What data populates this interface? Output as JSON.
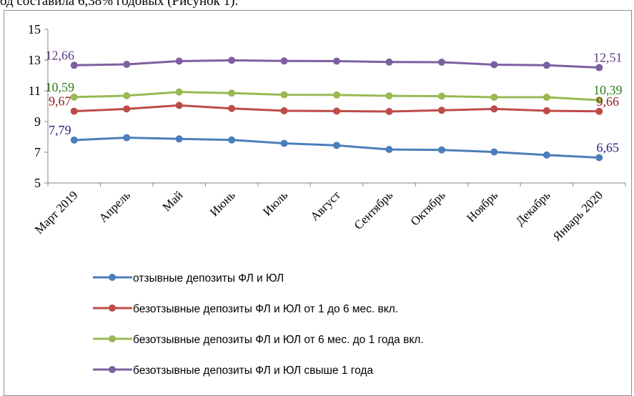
{
  "page": {
    "top_text": "од составила 6,38% годовых (Рисунок 1)."
  },
  "chart_data": {
    "type": "line",
    "categories": [
      "Март 2019",
      "Апрель",
      "Май",
      "Июнь",
      "Июль",
      "Август",
      "Сентябрь",
      "Октябрь",
      "Ноябрь",
      "Декабрь",
      "Январь 2020"
    ],
    "yticks": [
      "5",
      "7",
      "9",
      "11",
      "13",
      "15"
    ],
    "ylim": [
      5,
      15
    ],
    "grid": false,
    "legend_position": "bottom",
    "series": [
      {
        "name": "отзывные депозиты ФЛ и ЮЛ",
        "color": "#4A7EBB",
        "label_color": "#1F1F7A",
        "values": [
          7.79,
          7.95,
          7.87,
          7.8,
          7.58,
          7.45,
          7.18,
          7.15,
          7.02,
          6.82,
          6.65
        ],
        "first_label": "7,79",
        "last_label": "6,65"
      },
      {
        "name": "безотзывные депозиты ФЛ и ЮЛ от 1 до 6 мес. вкл.",
        "color": "#BE4B48",
        "label_color": "#8B1A1A",
        "values": [
          9.67,
          9.82,
          10.05,
          9.85,
          9.7,
          9.68,
          9.65,
          9.73,
          9.82,
          9.7,
          9.66
        ],
        "first_label": "9,67",
        "last_label": "9,66"
      },
      {
        "name": "безотзывные депозиты ФЛ и ЮЛ от 6 мес. до 1 года вкл.",
        "color": "#98B954",
        "label_color": "#2F7A1A",
        "values": [
          10.59,
          10.68,
          10.92,
          10.85,
          10.74,
          10.73,
          10.67,
          10.65,
          10.58,
          10.58,
          10.39
        ],
        "first_label": "10,59",
        "last_label": "10,39"
      },
      {
        "name": "безотзывные депозиты ФЛ и ЮЛ свыше 1 года",
        "color": "#7D60A0",
        "label_color": "#5B3A86",
        "values": [
          12.66,
          12.72,
          12.93,
          12.98,
          12.94,
          12.93,
          12.87,
          12.86,
          12.7,
          12.66,
          12.51
        ],
        "first_label": "12,66",
        "last_label": "12,51"
      }
    ]
  }
}
